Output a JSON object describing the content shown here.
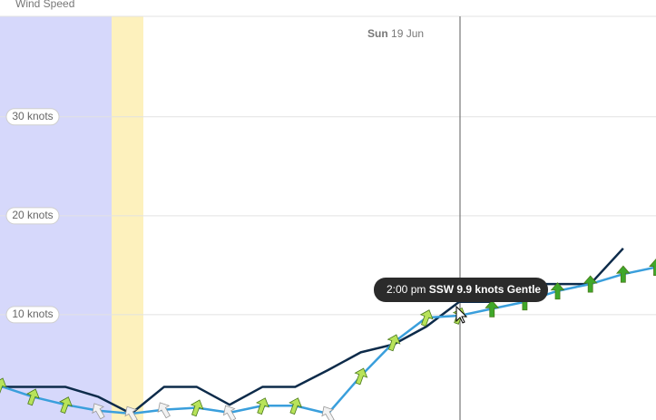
{
  "chart_data": {
    "type": "line",
    "title": "Wind Speed",
    "date_label": {
      "day": "Sun",
      "date": "19 Jun"
    },
    "tooltip": {
      "time": "2:00 pm",
      "direction": "SSW",
      "speed": "9.9 knots",
      "description": "Gentle"
    },
    "categories": [
      null,
      null,
      null,
      null,
      null,
      null,
      null,
      null,
      null,
      null,
      null,
      null,
      null,
      null,
      null,
      null,
      null,
      null,
      null,
      null,
      null
    ],
    "series": [
      {
        "color": "#0d2b4a",
        "values": [
          2.7,
          2.7,
          2.7,
          1.7,
          0,
          2.7,
          2.7,
          0.9,
          2.7,
          2.7,
          4.4,
          6.2,
          7.0,
          8.8,
          11.3,
          11.3,
          13.1,
          13.1,
          13.1,
          16.7,
          null
        ]
      },
      {
        "color": "#3a9fdc",
        "values": [
          2.8,
          1.7,
          0.9,
          0.3,
          0,
          0.4,
          0.6,
          0.1,
          0.8,
          0.8,
          0,
          3.8,
          7.2,
          9.7,
          9.9,
          10.6,
          11.3,
          12.4,
          13.1,
          14.1,
          14.8
        ],
        "arrows": true
      }
    ],
    "ylim": [
      0,
      41.8
    ],
    "yticks": [
      {
        "value": 10,
        "label": "10 knots"
      },
      {
        "value": 20,
        "label": "20 knots"
      },
      {
        "value": 30,
        "label": "30 knots"
      }
    ],
    "grid": true
  }
}
